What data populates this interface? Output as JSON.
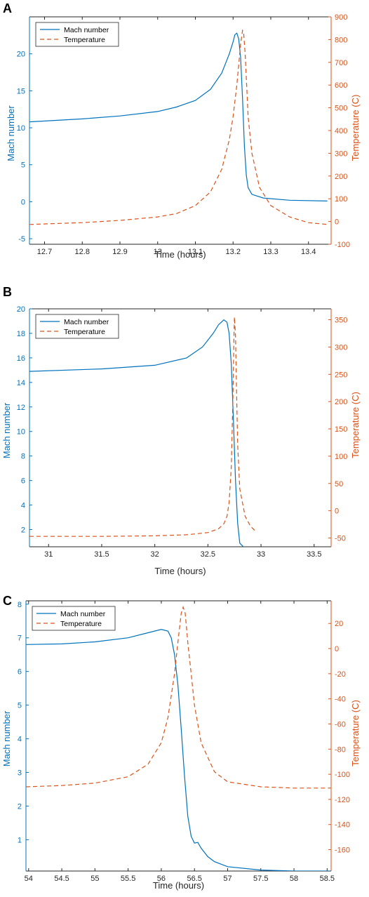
{
  "colors": {
    "mach": "#0072BD",
    "temperature": "#D95319",
    "axis": "#262626"
  },
  "chart_data": [
    {
      "panel": "A",
      "type": "line",
      "xlabel": "Time (hours)",
      "ylabel_left": "Mach number",
      "ylabel_right": "Temperature (C)",
      "xlim": [
        12.66,
        13.46
      ],
      "ylim_left": [
        -5.75,
        25
      ],
      "ylim_right": [
        -100,
        900
      ],
      "xticks": [
        12.7,
        12.8,
        12.9,
        13.0,
        13.1,
        13.2,
        13.3,
        13.4
      ],
      "xtick_labels": [
        "12.7",
        "12.8",
        "12.9",
        "13",
        "13.1",
        "13.2",
        "13.3",
        "13.4"
      ],
      "yticks_left": [
        -5,
        0,
        5,
        10,
        15,
        20
      ],
      "yticks_right": [
        -100,
        0,
        100,
        200,
        300,
        400,
        500,
        600,
        700,
        800,
        900
      ],
      "grid": false,
      "legend_placement": "top-left",
      "series": [
        {
          "name": "Mach number",
          "axis": "left",
          "style": "solid",
          "x": [
            12.66,
            12.8,
            12.9,
            13.0,
            13.05,
            13.1,
            13.14,
            13.17,
            13.19,
            13.2,
            13.205,
            13.21,
            13.215,
            13.22,
            13.225,
            13.23,
            13.235,
            13.24,
            13.25,
            13.28,
            13.35,
            13.45
          ],
          "y": [
            10.8,
            11.2,
            11.6,
            12.2,
            12.8,
            13.7,
            15.2,
            17.4,
            20.0,
            21.6,
            22.6,
            22.8,
            22.0,
            19.5,
            14.0,
            7.5,
            3.6,
            1.9,
            1.0,
            0.5,
            0.2,
            0.1
          ]
        },
        {
          "name": "Temperature",
          "axis": "right",
          "style": "dashed",
          "x": [
            12.66,
            12.8,
            12.9,
            13.0,
            13.05,
            13.1,
            13.14,
            13.17,
            13.19,
            13.2,
            13.21,
            13.215,
            13.22,
            13.225,
            13.228,
            13.232,
            13.236,
            13.24,
            13.25,
            13.27,
            13.3,
            13.35,
            13.4,
            13.45
          ],
          "y": [
            -13,
            -5,
            5,
            20,
            35,
            70,
            130,
            230,
            360,
            460,
            600,
            690,
            780,
            840,
            830,
            740,
            600,
            460,
            300,
            150,
            70,
            20,
            -5,
            -13
          ]
        }
      ]
    },
    {
      "panel": "B",
      "type": "line",
      "xlabel": "Time (hours)",
      "ylabel_left": "Mach number",
      "ylabel_right": "Temperature (C)",
      "xlim": [
        30.82,
        33.66
      ],
      "ylim_left": [
        0.6,
        20
      ],
      "ylim_right": [
        -66,
        370
      ],
      "xticks": [
        31.0,
        31.5,
        32.0,
        32.5,
        33.0,
        33.5
      ],
      "xtick_labels": [
        "31",
        "31.5",
        "32",
        "32.5",
        "33",
        "33.5"
      ],
      "yticks_left": [
        2,
        4,
        6,
        8,
        10,
        12,
        14,
        16,
        18,
        20
      ],
      "yticks_right": [
        -50,
        0,
        50,
        100,
        150,
        200,
        250,
        300,
        350
      ],
      "grid": false,
      "legend_placement": "top-left",
      "series": [
        {
          "name": "Mach number",
          "axis": "left",
          "style": "solid",
          "x": [
            30.82,
            31.5,
            32.0,
            32.3,
            32.45,
            32.55,
            32.6,
            32.65,
            32.68,
            32.7,
            32.72,
            32.74,
            32.76,
            32.78,
            32.8,
            32.85,
            32.95,
            33.02
          ],
          "y": [
            14.9,
            15.1,
            15.4,
            16.0,
            16.9,
            18.0,
            18.7,
            19.1,
            18.9,
            18.0,
            15.5,
            11.0,
            6.0,
            2.5,
            0.9,
            0.45,
            0.3,
            0.2
          ]
        },
        {
          "name": "Temperature",
          "axis": "right",
          "style": "dashed",
          "x": [
            30.82,
            31.5,
            32.0,
            32.3,
            32.5,
            32.6,
            32.65,
            32.68,
            32.7,
            32.72,
            32.735,
            32.745,
            32.75,
            32.76,
            32.77,
            32.78,
            32.8,
            32.85,
            32.9,
            32.95
          ],
          "y": [
            -47,
            -47,
            -46,
            -44,
            -40,
            -33,
            -24,
            -10,
            15,
            80,
            200,
            320,
            355,
            320,
            220,
            120,
            40,
            -10,
            -28,
            -38
          ]
        }
      ]
    },
    {
      "panel": "C",
      "type": "line",
      "xlabel": "Time (hours)",
      "ylabel_left": "Mach number",
      "ylabel_right": "Temperature (C)",
      "xlim": [
        53.96,
        58.56
      ],
      "ylim_left": [
        0.07,
        8.1
      ],
      "ylim_right": [
        -177,
        38
      ],
      "xticks": [
        54,
        54.5,
        55,
        55.5,
        56,
        56.5,
        57,
        57.5,
        58,
        58.5
      ],
      "xtick_labels": [
        "54",
        "54.5",
        "55",
        "55.5",
        "56",
        "56.5",
        "57",
        "57.5",
        "58",
        "58.5"
      ],
      "yticks_left": [
        1,
        2,
        3,
        4,
        5,
        6,
        7,
        8
      ],
      "yticks_right": [
        -160,
        -140,
        -120,
        -100,
        -80,
        -60,
        -40,
        -20,
        0,
        20
      ],
      "grid": false,
      "legend_placement": "top-left",
      "series": [
        {
          "name": "Mach number",
          "axis": "left",
          "style": "solid",
          "x": [
            53.96,
            54.5,
            55.0,
            55.5,
            55.8,
            56.0,
            56.1,
            56.15,
            56.2,
            56.25,
            56.3,
            56.35,
            56.4,
            56.45,
            56.5,
            56.55,
            56.6,
            56.7,
            56.8,
            57.0,
            57.5,
            58.0,
            58.56
          ],
          "y": [
            6.8,
            6.82,
            6.88,
            7.0,
            7.15,
            7.25,
            7.2,
            7.0,
            6.5,
            5.6,
            4.3,
            2.9,
            1.7,
            1.1,
            0.9,
            0.92,
            0.75,
            0.5,
            0.35,
            0.2,
            0.1,
            0.07,
            0.07
          ]
        },
        {
          "name": "Temperature",
          "axis": "right",
          "style": "dashed",
          "x": [
            53.96,
            54.5,
            55.0,
            55.5,
            55.8,
            56.0,
            56.1,
            56.2,
            56.25,
            56.3,
            56.33,
            56.36,
            56.4,
            56.45,
            56.5,
            56.6,
            56.8,
            57.0,
            57.5,
            58.0,
            58.56
          ],
          "y": [
            -110,
            -109,
            -107,
            -102,
            -92,
            -75,
            -55,
            -20,
            5,
            28,
            33,
            28,
            5,
            -20,
            -45,
            -75,
            -98,
            -106,
            -110,
            -111,
            -111
          ]
        }
      ]
    }
  ],
  "legend_labels": [
    "Mach number",
    "Temperature"
  ]
}
